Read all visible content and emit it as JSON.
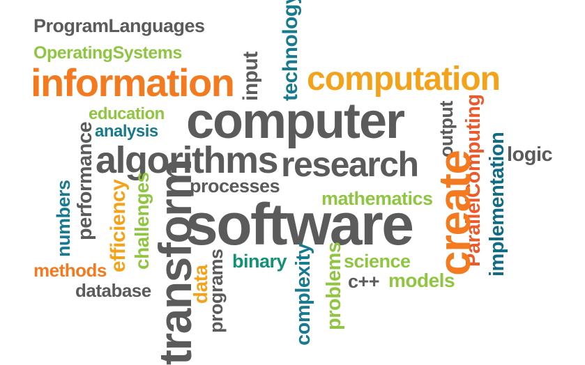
{
  "colors": {
    "gray": "#5b5b5b",
    "orange": "#f47a20",
    "amber": "#f5a21b",
    "green": "#8fc641",
    "teal": "#177a8e",
    "tealdark": "#0f6c82",
    "redorange": "#ec5a2b",
    "greenteal": "#129174"
  },
  "words": {
    "program_languages": "ProgramLanguages",
    "operating_systems": "OperatingSystems",
    "information": "information",
    "input": "input",
    "technology": "technology",
    "computation": "computation",
    "education": "education",
    "analysis": "analysis",
    "computer": "computer",
    "output": "output",
    "parallel_computing": "ParallelComputing",
    "logic": "logic",
    "performance": "performance",
    "algorithms": "algorithms",
    "research": "research",
    "implementation": "implementation",
    "create": "create",
    "processes": "processes",
    "numbers": "numbers",
    "efficiency": "efficiency",
    "challenges": "challenges",
    "transform": "transform",
    "mathematics": "mathematics",
    "software": "software",
    "methods": "methods",
    "database": "database",
    "data": "data",
    "programs": "programs",
    "binary": "binary",
    "complexity": "complexity",
    "problems": "problems",
    "science": "science",
    "cpp": "c++",
    "models": "models"
  }
}
